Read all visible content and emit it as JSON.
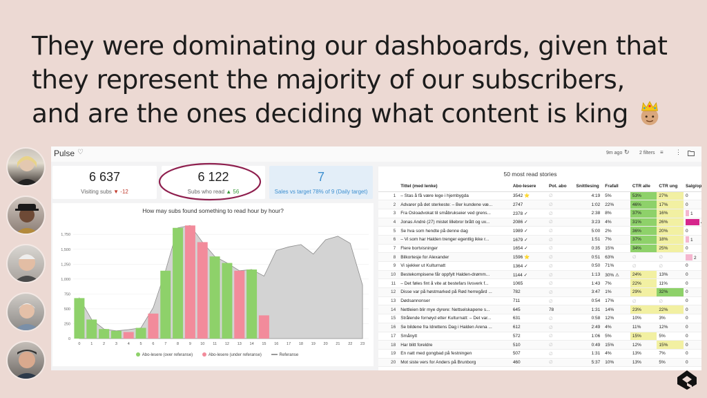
{
  "headline": {
    "line1": "They were dominating our dashboards, given that",
    "line2": "they represent the majority of our subscribers,",
    "line3": "and are the ones deciding what content is king",
    "emoji": "crown-person-emoji"
  },
  "dashboard": {
    "title": "Pulse",
    "updated": "9m ago",
    "filters": "2 filters",
    "kpis": [
      {
        "value": "6 637",
        "label": "Visiting subs",
        "delta": "▼ -12"
      },
      {
        "value": "6 122",
        "label": "Subs who read",
        "delta": "▲ 56"
      },
      {
        "value": "7",
        "label": "Sales vs target 78% of 9 (Daily target)"
      }
    ],
    "highlight_color": "#8e1f4e"
  },
  "chart_data": {
    "type": "bar",
    "title": "How may subs found something to read hour by hour?",
    "categories": [
      "0",
      "1",
      "2",
      "3",
      "4",
      "5",
      "6",
      "7",
      "8",
      "9",
      "10",
      "11",
      "12",
      "13",
      "14",
      "15",
      "16",
      "17",
      "18",
      "19",
      "20",
      "21",
      "22",
      "23"
    ],
    "yticks": [
      "1,750",
      "1,500",
      "1,250",
      "1,000",
      "750",
      "500",
      "250",
      "0"
    ],
    "ylim": [
      0,
      1950
    ],
    "series": [
      {
        "name": "Abo-lesere (over referanse)",
        "color": "#8ed16a",
        "values": [
          680,
          320,
          160,
          130,
          null,
          180,
          null,
          1140,
          1860,
          null,
          null,
          1380,
          1270,
          null,
          1160,
          null,
          null,
          null,
          null,
          null,
          null,
          null,
          null,
          null
        ]
      },
      {
        "name": "Abo-lesere (under referanse)",
        "color": "#f28b9b",
        "values": [
          null,
          null,
          null,
          null,
          110,
          null,
          420,
          null,
          null,
          1900,
          1620,
          null,
          null,
          1140,
          null,
          390,
          null,
          null,
          null,
          null,
          null,
          null,
          null,
          null
        ]
      },
      {
        "name": "Referanse",
        "color": "#b5b5b5",
        "values": [
          680,
          320,
          160,
          130,
          150,
          180,
          520,
          1140,
          1860,
          1900,
          1620,
          1380,
          1270,
          1140,
          1160,
          1050,
          1480,
          1540,
          1580,
          1420,
          1660,
          1720,
          1600,
          900
        ]
      }
    ]
  },
  "table": {
    "title": "50 most read stories",
    "headers": [
      "",
      "Tittel (med lenke)",
      "Abo-lesere",
      "Pot. abo",
      "Snittlesing",
      "Frafall",
      "CTR alle",
      "CTR ung",
      "Salg/oppg"
    ],
    "rows": [
      {
        "rank": "1",
        "title": "– Stas å få være lege i hjembygda",
        "abo": "3542 ⭐",
        "pot": "∅",
        "snitt": "4:19",
        "frafall": "5%",
        "ctr": "53%",
        "ctru": "27%",
        "salg": "0"
      },
      {
        "rank": "2",
        "title": "Advarer på det sterkeste: – Ber kundene væ...",
        "abo": "2747",
        "pot": "∅",
        "snitt": "1:02",
        "frafall": "22%",
        "ctr": "46%",
        "ctru": "17%",
        "salg": "0"
      },
      {
        "rank": "3",
        "title": "Fra Osloadvokat til småbrukseier ved grens...",
        "abo": "2378 ✓",
        "pot": "∅",
        "snitt": "2:38",
        "frafall": "8%",
        "ctr": "37%",
        "ctru": "16%",
        "salg": "1"
      },
      {
        "rank": "4",
        "title": "Jonas André (27) mistet lillebror brått og uv...",
        "abo": "2086 ✓",
        "pot": "∅",
        "snitt": "3:23",
        "frafall": "4%",
        "ctr": "31%",
        "ctru": "26%",
        "salg": "4"
      },
      {
        "rank": "5",
        "title": "Se hva som hendte på denne dag",
        "abo": "1989 ✓",
        "pot": "∅",
        "snitt": "5:00",
        "frafall": "2%",
        "ctr": "36%",
        "ctru": "20%",
        "salg": "0"
      },
      {
        "rank": "6",
        "title": "– Vi som har Halden trenger egentlig ikke r...",
        "abo": "1679 ✓",
        "pot": "∅",
        "snitt": "1:51",
        "frafall": "7%",
        "ctr": "37%",
        "ctru": "18%",
        "salg": "1"
      },
      {
        "rank": "7",
        "title": "Flere bortvisninger",
        "abo": "1654 ✓",
        "pot": "∅",
        "snitt": "0:35",
        "frafall": "15%",
        "ctr": "34%",
        "ctru": "25%",
        "salg": "0"
      },
      {
        "rank": "8",
        "title": "Bilkortesje for Alexander",
        "abo": "1596 ⭐",
        "pot": "∅",
        "snitt": "0:51",
        "frafall": "63%",
        "ctr": "∅",
        "ctru": "∅",
        "salg": "2"
      },
      {
        "rank": "9",
        "title": "Vi sjekker ut Kulturnatt",
        "abo": "1364 ✓",
        "pot": "∅",
        "snitt": "0:50",
        "frafall": "71%",
        "ctr": "∅",
        "ctru": "∅",
        "salg": "0"
      },
      {
        "rank": "10",
        "title": "Bestekompisene får oppfylt Halden-drømm...",
        "abo": "1144 ✓",
        "pot": "∅",
        "snitt": "1:13",
        "frafall": "30% ⚠",
        "ctr": "24%",
        "ctru": "13%",
        "salg": "0"
      },
      {
        "rank": "11",
        "title": "– Det føles fint å vite at bestefars livsverk f...",
        "abo": "1065",
        "pot": "∅",
        "snitt": "1:43",
        "frafall": "7%",
        "ctr": "22%",
        "ctru": "11%",
        "salg": "0"
      },
      {
        "rank": "12",
        "title": "Disse var på høstmarked på Rød herregård ...",
        "abo": "782",
        "pot": "∅",
        "snitt": "3:47",
        "frafall": "1%",
        "ctr": "29%",
        "ctru": "32%",
        "salg": "0"
      },
      {
        "rank": "13",
        "title": "Dødsannonser",
        "abo": "711",
        "pot": "∅",
        "snitt": "0:54",
        "frafall": "17%",
        "ctr": "∅",
        "ctru": "∅",
        "salg": "0"
      },
      {
        "rank": "14",
        "title": "Nettleien blir mye dyrere: Nettselskapene s...",
        "abo": "645",
        "pot": "78",
        "snitt": "1:31",
        "frafall": "14%",
        "ctr": "23%",
        "ctru": "22%",
        "salg": "0"
      },
      {
        "rank": "15",
        "title": "Strålende fornøyd etter Kulturnatt: – Det var...",
        "abo": "631",
        "pot": "∅",
        "snitt": "0:58",
        "frafall": "12%",
        "ctr": "10%",
        "ctru": "3%",
        "salg": "0"
      },
      {
        "rank": "16",
        "title": "Se bildene fra Idrettens Dag i Halden Arena ...",
        "abo": "612",
        "pot": "∅",
        "snitt": "2:49",
        "frafall": "4%",
        "ctr": "11%",
        "ctru": "12%",
        "salg": "0"
      },
      {
        "rank": "17",
        "title": "Smånytt",
        "abo": "572",
        "pot": "∅",
        "snitt": "1:06",
        "frafall": "5%",
        "ctr": "15%",
        "ctru": "5%",
        "salg": "0"
      },
      {
        "rank": "18",
        "title": "Har blitt foreldre",
        "abo": "510",
        "pot": "∅",
        "snitt": "0:49",
        "frafall": "15%",
        "ctr": "12%",
        "ctru": "15%",
        "salg": "0"
      },
      {
        "rank": "19",
        "title": "En natt med gongbad på festningen",
        "abo": "507",
        "pot": "∅",
        "snitt": "1:31",
        "frafall": "4%",
        "ctr": "13%",
        "ctru": "7%",
        "salg": "0"
      },
      {
        "rank": "20",
        "title": "Mot siste vers for Anders på Brunborg",
        "abo": "460",
        "pot": "∅",
        "snitt": "5:37",
        "frafall": "10%",
        "ctr": "13%",
        "ctru": "5%",
        "salg": "0"
      }
    ]
  },
  "colors": {
    "green_strong": "#8ed16a",
    "green_light": "#cdebb0",
    "yellow_light": "#f2f0a2",
    "pink": "#f28b9b",
    "magenta": "#d6268c"
  }
}
